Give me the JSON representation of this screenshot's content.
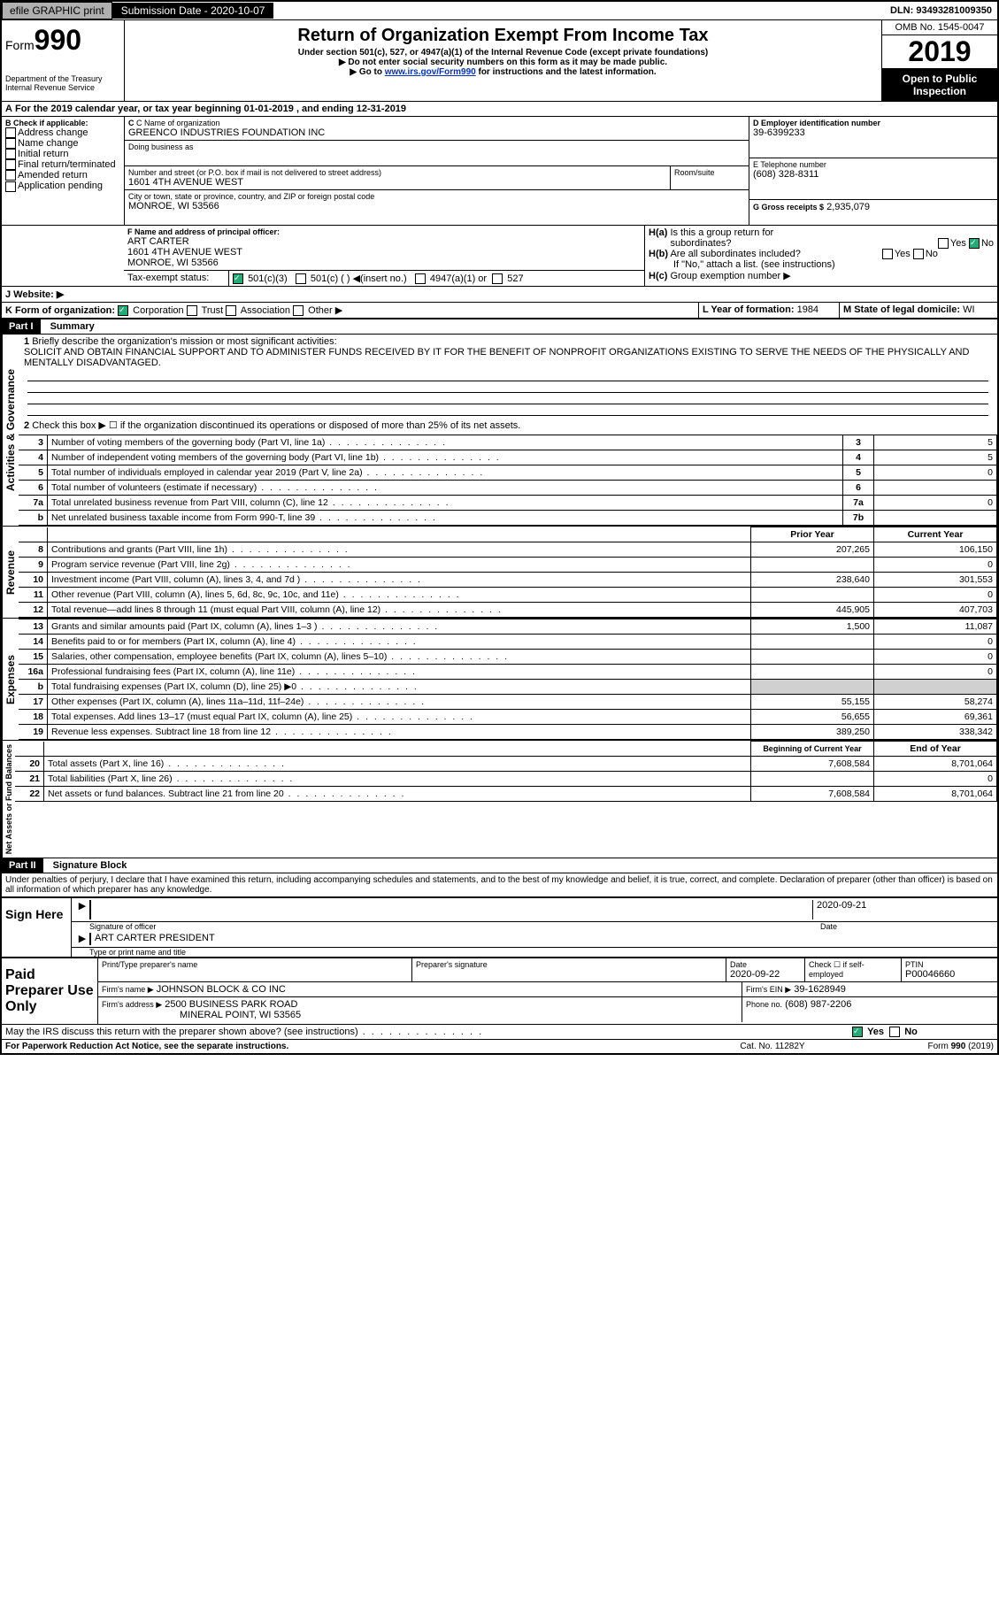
{
  "topbar": {
    "efile": "efile GRAPHIC print",
    "submission_label": "Submission Date - 2020-10-07",
    "dln": "DLN: 93493281009350"
  },
  "header": {
    "form_label": "Form",
    "form_number": "990",
    "dept": "Department of the Treasury\nInternal Revenue Service",
    "title": "Return of Organization Exempt From Income Tax",
    "subtitle": "Under section 501(c), 527, or 4947(a)(1) of the Internal Revenue Code (except private foundations)",
    "note1": "▶ Do not enter social security numbers on this form as it may be made public.",
    "note2_prefix": "▶ Go to ",
    "note2_link": "www.irs.gov/Form990",
    "note2_suffix": " for instructions and the latest information.",
    "omb": "OMB No. 1545-0047",
    "year": "2019",
    "open_public": "Open to Public Inspection"
  },
  "line_a": "For the 2019 calendar year, or tax year beginning 01-01-2019   , and ending 12-31-2019",
  "box_b": {
    "label": "B Check if applicable:",
    "items": [
      "Address change",
      "Name change",
      "Initial return",
      "Final return/terminated",
      "Amended return",
      "Application pending"
    ]
  },
  "box_c": {
    "name_label": "C Name of organization",
    "name": "GREENCO INDUSTRIES FOUNDATION INC",
    "dba_label": "Doing business as",
    "addr_label": "Number and street (or P.O. box if mail is not delivered to street address)",
    "room_label": "Room/suite",
    "addr": "1601 4TH AVENUE WEST",
    "city_label": "City or town, state or province, country, and ZIP or foreign postal code",
    "city": "MONROE, WI  53566"
  },
  "box_d": {
    "label": "D Employer identification number",
    "ein": "39-6399233"
  },
  "box_e": {
    "label": "E Telephone number",
    "phone": "(608) 328-8311"
  },
  "box_g": {
    "label": "G Gross receipts $",
    "amount": "2,935,079"
  },
  "box_f": {
    "label": "F  Name and address of principal officer:",
    "name": "ART CARTER",
    "addr1": "1601 4TH AVENUE WEST",
    "addr2": "MONROE, WI  53566"
  },
  "box_h": {
    "a_label": "H(a)  Is this a group return for subordinates?",
    "b_label": "H(b)  Are all subordinates included?",
    "b_note": "If \"No,\" attach a list. (see instructions)",
    "c_label": "H(c)  Group exemption number ▶",
    "yes": "Yes",
    "no": "No"
  },
  "tax_exempt": {
    "label": "Tax-exempt status:",
    "opt1": "501(c)(3)",
    "opt2": "501(c) (   ) ◀(insert no.)",
    "opt3": "4947(a)(1) or",
    "opt4": "527"
  },
  "website": {
    "label": "J   Website: ▶"
  },
  "box_k": {
    "label": "K Form of organization:",
    "corp": "Corporation",
    "trust": "Trust",
    "assoc": "Association",
    "other": "Other ▶"
  },
  "box_l": {
    "label": "L Year of formation:",
    "value": "1984"
  },
  "box_m": {
    "label": "M State of legal domicile:",
    "value": "WI"
  },
  "part1": {
    "label": "Part I",
    "title": "Summary"
  },
  "activities": {
    "label": "Activities & Governance",
    "line1": "Briefly describe the organization's mission or most significant activities:",
    "mission": "SOLICIT AND OBTAIN FINANCIAL SUPPORT AND TO ADMINISTER FUNDS RECEIVED BY IT FOR THE BENEFIT OF NONPROFIT ORGANIZATIONS EXISTING TO SERVE THE NEEDS OF THE PHYSICALLY AND MENTALLY DISADVANTAGED.",
    "line2": "Check this box ▶ ☐ if the organization discontinued its operations or disposed of more than 25% of its net assets.",
    "rows": [
      {
        "n": "3",
        "desc": "Number of voting members of the governing body (Part VI, line 1a)",
        "col": "3",
        "val": "5"
      },
      {
        "n": "4",
        "desc": "Number of independent voting members of the governing body (Part VI, line 1b)",
        "col": "4",
        "val": "5"
      },
      {
        "n": "5",
        "desc": "Total number of individuals employed in calendar year 2019 (Part V, line 2a)",
        "col": "5",
        "val": "0"
      },
      {
        "n": "6",
        "desc": "Total number of volunteers (estimate if necessary)",
        "col": "6",
        "val": ""
      },
      {
        "n": "7a",
        "desc": "Total unrelated business revenue from Part VIII, column (C), line 12",
        "col": "7a",
        "val": "0"
      },
      {
        "n": "b",
        "desc": "Net unrelated business taxable income from Form 990-T, line 39",
        "col": "7b",
        "val": ""
      }
    ]
  },
  "revenue": {
    "label": "Revenue",
    "prior_year": "Prior Year",
    "current_year": "Current Year",
    "rows": [
      {
        "n": "8",
        "desc": "Contributions and grants (Part VIII, line 1h)",
        "py": "207,265",
        "cy": "106,150"
      },
      {
        "n": "9",
        "desc": "Program service revenue (Part VIII, line 2g)",
        "py": "",
        "cy": "0"
      },
      {
        "n": "10",
        "desc": "Investment income (Part VIII, column (A), lines 3, 4, and 7d )",
        "py": "238,640",
        "cy": "301,553"
      },
      {
        "n": "11",
        "desc": "Other revenue (Part VIII, column (A), lines 5, 6d, 8c, 9c, 10c, and 11e)",
        "py": "",
        "cy": "0"
      },
      {
        "n": "12",
        "desc": "Total revenue—add lines 8 through 11 (must equal Part VIII, column (A), line 12)",
        "py": "445,905",
        "cy": "407,703"
      }
    ]
  },
  "expenses": {
    "label": "Expenses",
    "rows": [
      {
        "n": "13",
        "desc": "Grants and similar amounts paid (Part IX, column (A), lines 1–3 )",
        "py": "1,500",
        "cy": "11,087"
      },
      {
        "n": "14",
        "desc": "Benefits paid to or for members (Part IX, column (A), line 4)",
        "py": "",
        "cy": "0"
      },
      {
        "n": "15",
        "desc": "Salaries, other compensation, employee benefits (Part IX, column (A), lines 5–10)",
        "py": "",
        "cy": "0"
      },
      {
        "n": "16a",
        "desc": "Professional fundraising fees (Part IX, column (A), line 11e)",
        "py": "",
        "cy": "0"
      },
      {
        "n": "b",
        "desc": "Total fundraising expenses (Part IX, column (D), line 25) ▶0",
        "py": "gray",
        "cy": "gray"
      },
      {
        "n": "17",
        "desc": "Other expenses (Part IX, column (A), lines 11a–11d, 11f–24e)",
        "py": "55,155",
        "cy": "58,274"
      },
      {
        "n": "18",
        "desc": "Total expenses. Add lines 13–17 (must equal Part IX, column (A), line 25)",
        "py": "56,655",
        "cy": "69,361"
      },
      {
        "n": "19",
        "desc": "Revenue less expenses. Subtract line 18 from line 12",
        "py": "389,250",
        "cy": "338,342"
      }
    ]
  },
  "netassets": {
    "label": "Net Assets or Fund Balances",
    "begin": "Beginning of Current Year",
    "end": "End of Year",
    "rows": [
      {
        "n": "20",
        "desc": "Total assets (Part X, line 16)",
        "py": "7,608,584",
        "cy": "8,701,064"
      },
      {
        "n": "21",
        "desc": "Total liabilities (Part X, line 26)",
        "py": "",
        "cy": "0"
      },
      {
        "n": "22",
        "desc": "Net assets or fund balances. Subtract line 21 from line 20",
        "py": "7,608,584",
        "cy": "8,701,064"
      }
    ]
  },
  "part2": {
    "label": "Part II",
    "title": "Signature Block",
    "declaration": "Under penalties of perjury, I declare that I have examined this return, including accompanying schedules and statements, and to the best of my knowledge and belief, it is true, correct, and complete. Declaration of preparer (other than officer) is based on all information of which preparer has any knowledge."
  },
  "sign": {
    "here": "Sign Here",
    "sig_officer": "Signature of officer",
    "date": "2020-09-21",
    "date_label": "Date",
    "name_title": "ART CARTER  PRESIDENT",
    "name_label": "Type or print name and title"
  },
  "preparer": {
    "label": "Paid Preparer Use Only",
    "print_name_label": "Print/Type preparer's name",
    "sig_label": "Preparer's signature",
    "date_label": "Date",
    "date": "2020-09-22",
    "check_label": "Check ☐ if self-employed",
    "ptin_label": "PTIN",
    "ptin": "P00046660",
    "firm_name_label": "Firm's name    ▶",
    "firm_name": "JOHNSON BLOCK & CO INC",
    "firm_ein_label": "Firm's EIN ▶",
    "firm_ein": "39-1628949",
    "firm_addr_label": "Firm's address ▶",
    "firm_addr1": "2500 BUSINESS PARK ROAD",
    "firm_addr2": "MINERAL POINT, WI  53565",
    "phone_label": "Phone no.",
    "phone": "(608) 987-2206"
  },
  "discuss": {
    "text": "May the IRS discuss this return with the preparer shown above? (see instructions)",
    "yes": "Yes",
    "no": "No"
  },
  "footer": {
    "left": "For Paperwork Reduction Act Notice, see the separate instructions.",
    "center": "Cat. No. 11282Y",
    "right": "Form 990 (2019)"
  },
  "colors": {
    "black": "#000000",
    "gray_btn": "#b0b0b0",
    "link": "#0033cc",
    "check_green": "#22aa77"
  }
}
